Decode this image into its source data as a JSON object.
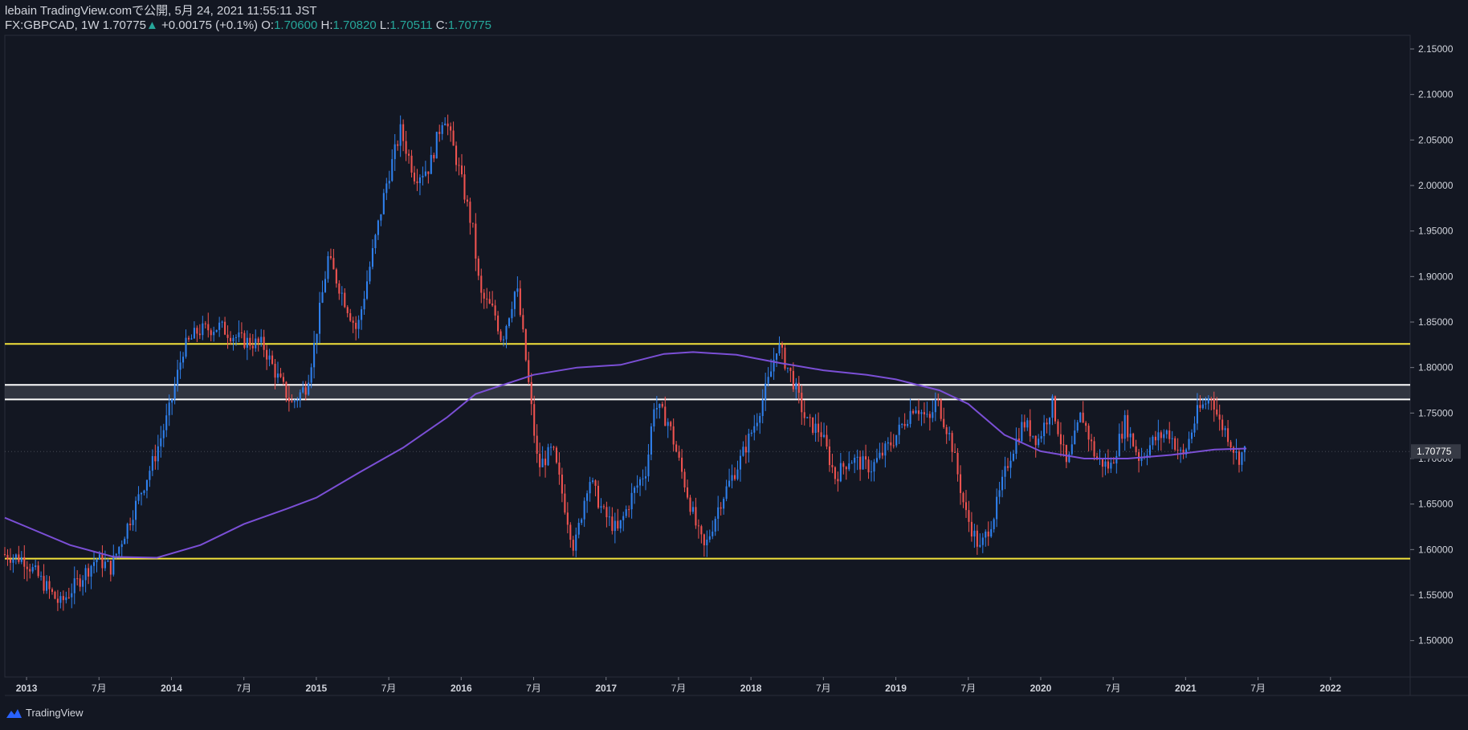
{
  "header": {
    "publisher_line": "lebain TradingView.comで公開, 5月 24, 2021 11:55:11 JST",
    "symbol": "FX:GBPCAD, 1W",
    "last": "1.70775",
    "arrow": "▲",
    "change": "+0.00175 (+0.1%)",
    "o_label": "O:",
    "o_value": "1.70600",
    "h_label": "H:",
    "h_value": "1.70820",
    "l_label": "L:",
    "l_value": "1.70511",
    "c_label": "C:",
    "c_value": "1.70775"
  },
  "footer": {
    "brand": "TradingView"
  },
  "colors": {
    "background": "#131722",
    "grid": "#1e2230",
    "up": "#2f80ed",
    "down": "#ef5350",
    "yellow_line": "#f3e23b",
    "zone_line": "#ffffff",
    "ma": "#7b4fd6",
    "text": "#d1d4dc",
    "price_tag_bg": "#363a45"
  },
  "chart_data": {
    "type": "candlestick",
    "title": "FX:GBPCAD, 1W",
    "ylim": [
      1.46,
      2.165
    ],
    "xlim": [
      2012.85,
      2022.55
    ],
    "yticks": [
      "2.15000",
      "2.10000",
      "2.05000",
      "2.00000",
      "1.95000",
      "1.90000",
      "1.85000",
      "1.80000",
      "1.75000",
      "1.70000",
      "1.65000",
      "1.60000",
      "1.55000",
      "1.50000"
    ],
    "xticks": [
      {
        "label": "2013",
        "t": 2013.0
      },
      {
        "label": "7月",
        "t": 2013.5
      },
      {
        "label": "2014",
        "t": 2014.0
      },
      {
        "label": "7月",
        "t": 2014.5
      },
      {
        "label": "2015",
        "t": 2015.0
      },
      {
        "label": "7月",
        "t": 2015.5
      },
      {
        "label": "2016",
        "t": 2016.0
      },
      {
        "label": "7月",
        "t": 2016.5
      },
      {
        "label": "2017",
        "t": 2017.0
      },
      {
        "label": "7月",
        "t": 2017.5
      },
      {
        "label": "2018",
        "t": 2018.0
      },
      {
        "label": "7月",
        "t": 2018.5
      },
      {
        "label": "2019",
        "t": 2019.0
      },
      {
        "label": "7月",
        "t": 2019.5
      },
      {
        "label": "2020",
        "t": 2020.0
      },
      {
        "label": "7月",
        "t": 2020.5
      },
      {
        "label": "2021",
        "t": 2021.0
      },
      {
        "label": "7月",
        "t": 2021.5
      },
      {
        "label": "2022",
        "t": 2022.0
      }
    ],
    "horizontal_levels": [
      {
        "name": "resistance-line",
        "value": 1.826,
        "color": "#f3e23b"
      },
      {
        "name": "support-line",
        "value": 1.59,
        "color": "#f3e23b"
      }
    ],
    "zone": {
      "top": 1.781,
      "bottom": 1.765
    },
    "last_price": {
      "label": "1.70775",
      "value": 1.70775
    },
    "price_path": [
      {
        "t": 2012.85,
        "p": 1.595
      },
      {
        "t": 2013.0,
        "p": 1.59
      },
      {
        "t": 2013.15,
        "p": 1.56
      },
      {
        "t": 2013.25,
        "p": 1.54
      },
      {
        "t": 2013.4,
        "p": 1.57
      },
      {
        "t": 2013.5,
        "p": 1.59
      },
      {
        "t": 2013.6,
        "p": 1.58
      },
      {
        "t": 2013.75,
        "p": 1.64
      },
      {
        "t": 2013.9,
        "p": 1.7
      },
      {
        "t": 2014.0,
        "p": 1.75
      },
      {
        "t": 2014.1,
        "p": 1.82
      },
      {
        "t": 2014.2,
        "p": 1.84
      },
      {
        "t": 2014.35,
        "p": 1.845
      },
      {
        "t": 2014.5,
        "p": 1.83
      },
      {
        "t": 2014.65,
        "p": 1.825
      },
      {
        "t": 2014.75,
        "p": 1.79
      },
      {
        "t": 2014.85,
        "p": 1.76
      },
      {
        "t": 2014.95,
        "p": 1.78
      },
      {
        "t": 2015.0,
        "p": 1.82
      },
      {
        "t": 2015.1,
        "p": 1.92
      },
      {
        "t": 2015.2,
        "p": 1.88
      },
      {
        "t": 2015.3,
        "p": 1.84
      },
      {
        "t": 2015.4,
        "p": 1.92
      },
      {
        "t": 2015.5,
        "p": 2.0
      },
      {
        "t": 2015.6,
        "p": 2.06
      },
      {
        "t": 2015.7,
        "p": 2.01
      },
      {
        "t": 2015.8,
        "p": 2.02
      },
      {
        "t": 2015.9,
        "p": 2.08
      },
      {
        "t": 2016.0,
        "p": 2.02
      },
      {
        "t": 2016.1,
        "p": 1.95
      },
      {
        "t": 2016.15,
        "p": 1.88
      },
      {
        "t": 2016.25,
        "p": 1.86
      },
      {
        "t": 2016.3,
        "p": 1.83
      },
      {
        "t": 2016.4,
        "p": 1.89
      },
      {
        "t": 2016.45,
        "p": 1.83
      },
      {
        "t": 2016.5,
        "p": 1.76
      },
      {
        "t": 2016.55,
        "p": 1.69
      },
      {
        "t": 2016.65,
        "p": 1.71
      },
      {
        "t": 2016.8,
        "p": 1.6
      },
      {
        "t": 2016.9,
        "p": 1.68
      },
      {
        "t": 2017.0,
        "p": 1.64
      },
      {
        "t": 2017.1,
        "p": 1.62
      },
      {
        "t": 2017.2,
        "p": 1.66
      },
      {
        "t": 2017.3,
        "p": 1.69
      },
      {
        "t": 2017.35,
        "p": 1.76
      },
      {
        "t": 2017.45,
        "p": 1.74
      },
      {
        "t": 2017.55,
        "p": 1.68
      },
      {
        "t": 2017.65,
        "p": 1.62
      },
      {
        "t": 2017.7,
        "p": 1.6
      },
      {
        "t": 2017.8,
        "p": 1.65
      },
      {
        "t": 2017.95,
        "p": 1.7
      },
      {
        "t": 2018.05,
        "p": 1.74
      },
      {
        "t": 2018.15,
        "p": 1.79
      },
      {
        "t": 2018.2,
        "p": 1.826
      },
      {
        "t": 2018.3,
        "p": 1.79
      },
      {
        "t": 2018.4,
        "p": 1.74
      },
      {
        "t": 2018.5,
        "p": 1.73
      },
      {
        "t": 2018.6,
        "p": 1.68
      },
      {
        "t": 2018.7,
        "p": 1.7
      },
      {
        "t": 2018.85,
        "p": 1.69
      },
      {
        "t": 2019.0,
        "p": 1.72
      },
      {
        "t": 2019.15,
        "p": 1.76
      },
      {
        "t": 2019.25,
        "p": 1.74
      },
      {
        "t": 2019.3,
        "p": 1.765
      },
      {
        "t": 2019.4,
        "p": 1.72
      },
      {
        "t": 2019.5,
        "p": 1.64
      },
      {
        "t": 2019.6,
        "p": 1.6
      },
      {
        "t": 2019.7,
        "p": 1.64
      },
      {
        "t": 2019.8,
        "p": 1.7
      },
      {
        "t": 2019.9,
        "p": 1.74
      },
      {
        "t": 2020.0,
        "p": 1.72
      },
      {
        "t": 2020.1,
        "p": 1.76
      },
      {
        "t": 2020.2,
        "p": 1.69
      },
      {
        "t": 2020.3,
        "p": 1.75
      },
      {
        "t": 2020.4,
        "p": 1.7
      },
      {
        "t": 2020.5,
        "p": 1.69
      },
      {
        "t": 2020.6,
        "p": 1.74
      },
      {
        "t": 2020.7,
        "p": 1.7
      },
      {
        "t": 2020.8,
        "p": 1.72
      },
      {
        "t": 2020.9,
        "p": 1.73
      },
      {
        "t": 2021.0,
        "p": 1.7
      },
      {
        "t": 2021.1,
        "p": 1.75
      },
      {
        "t": 2021.2,
        "p": 1.77
      },
      {
        "t": 2021.25,
        "p": 1.74
      },
      {
        "t": 2021.3,
        "p": 1.73
      },
      {
        "t": 2021.38,
        "p": 1.7
      },
      {
        "t": 2021.42,
        "p": 1.70775
      }
    ],
    "moving_average": [
      {
        "t": 2012.85,
        "p": 1.635
      },
      {
        "t": 2013.0,
        "p": 1.625
      },
      {
        "t": 2013.3,
        "p": 1.605
      },
      {
        "t": 2013.6,
        "p": 1.592
      },
      {
        "t": 2013.9,
        "p": 1.591
      },
      {
        "t": 2014.2,
        "p": 1.605
      },
      {
        "t": 2014.5,
        "p": 1.628
      },
      {
        "t": 2014.8,
        "p": 1.645
      },
      {
        "t": 2015.0,
        "p": 1.657
      },
      {
        "t": 2015.3,
        "p": 1.685
      },
      {
        "t": 2015.6,
        "p": 1.712
      },
      {
        "t": 2015.9,
        "p": 1.745
      },
      {
        "t": 2016.1,
        "p": 1.771
      },
      {
        "t": 2016.5,
        "p": 1.792
      },
      {
        "t": 2016.8,
        "p": 1.8
      },
      {
        "t": 2017.1,
        "p": 1.803
      },
      {
        "t": 2017.4,
        "p": 1.815
      },
      {
        "t": 2017.6,
        "p": 1.817
      },
      {
        "t": 2017.9,
        "p": 1.814
      },
      {
        "t": 2018.2,
        "p": 1.805
      },
      {
        "t": 2018.5,
        "p": 1.797
      },
      {
        "t": 2018.8,
        "p": 1.792
      },
      {
        "t": 2019.0,
        "p": 1.787
      },
      {
        "t": 2019.3,
        "p": 1.775
      },
      {
        "t": 2019.5,
        "p": 1.76
      },
      {
        "t": 2019.75,
        "p": 1.726
      },
      {
        "t": 2020.0,
        "p": 1.708
      },
      {
        "t": 2020.3,
        "p": 1.7
      },
      {
        "t": 2020.6,
        "p": 1.7
      },
      {
        "t": 2020.9,
        "p": 1.704
      },
      {
        "t": 2021.2,
        "p": 1.71
      },
      {
        "t": 2021.42,
        "p": 1.711
      }
    ]
  }
}
